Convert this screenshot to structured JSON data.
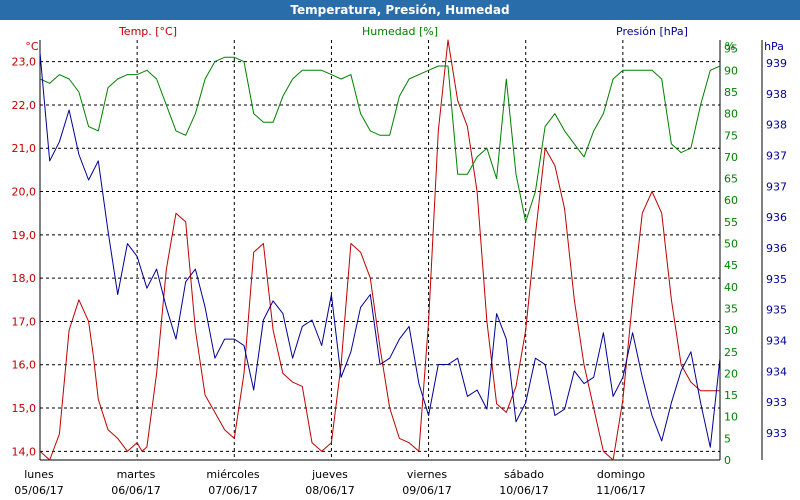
{
  "window": {
    "title": "Temperatura, Presión, Humedad"
  },
  "colors": {
    "temp": "#c00000",
    "hum": "#008000",
    "pres": "#000099",
    "grid": "#000000"
  },
  "chart_data": {
    "type": "line",
    "title": "Temperatura, Presión, Humedad",
    "grid": true,
    "x_categories": [
      {
        "day": "lunes",
        "date": "05/06/17"
      },
      {
        "day": "martes",
        "date": "06/06/17"
      },
      {
        "day": "miércoles",
        "date": "07/06/17"
      },
      {
        "day": "jueves",
        "date": "08/06/17"
      },
      {
        "day": "viernes",
        "date": "09/06/17"
      },
      {
        "day": "sábado",
        "date": "10/06/17"
      },
      {
        "day": "domingo",
        "date": "11/06/17"
      }
    ],
    "axes": {
      "temp": {
        "label": "Temp. [°C]",
        "unit": "°C",
        "ylim": [
          13.8,
          23.5
        ],
        "ticks": [
          "23,0",
          "22,0",
          "21,0",
          "20,0",
          "19,0",
          "18,0",
          "17,0",
          "16,0",
          "15,0",
          "14,0"
        ]
      },
      "hum": {
        "label": "Humedad [%]",
        "unit": "%",
        "ylim": [
          0,
          97
        ],
        "ticks": [
          "95",
          "90",
          "85",
          "80",
          "75",
          "70",
          "65",
          "60",
          "55",
          "50",
          "45",
          "40",
          "35",
          "30",
          "25",
          "20",
          "15",
          "10",
          "5",
          "0"
        ]
      },
      "pres": {
        "label": "Presión [hPa]",
        "unit": "hPa",
        "ticks": [
          "939",
          "938",
          "938",
          "937",
          "937",
          "936",
          "936",
          "935",
          "935",
          "934",
          "934",
          "933",
          "933"
        ]
      }
    },
    "series": [
      {
        "name": "Temp. [°C]",
        "axis": "temp",
        "x": [
          0,
          0.1,
          0.2,
          0.3,
          0.4,
          0.5,
          0.55,
          0.6,
          0.7,
          0.8,
          0.9,
          1.0,
          1.05,
          1.1,
          1.2,
          1.3,
          1.4,
          1.5,
          1.6,
          1.7,
          1.8,
          1.9,
          2.0,
          2.1,
          2.2,
          2.3,
          2.4,
          2.5,
          2.6,
          2.7,
          2.8,
          2.9,
          3.0,
          3.1,
          3.2,
          3.3,
          3.4,
          3.5,
          3.6,
          3.7,
          3.8,
          3.9,
          4.0,
          4.1,
          4.2,
          4.3,
          4.4,
          4.5,
          4.6,
          4.7,
          4.8,
          4.9,
          5.0,
          5.1,
          5.2,
          5.3,
          5.4,
          5.5,
          5.6,
          5.7,
          5.8,
          5.9,
          6.0,
          6.1,
          6.2,
          6.3,
          6.4,
          6.5,
          6.6,
          6.7,
          6.8,
          6.9,
          7.0
        ],
        "values": [
          14.0,
          13.8,
          14.4,
          16.8,
          17.5,
          17.0,
          16.2,
          15.2,
          14.5,
          14.3,
          14.0,
          14.2,
          14.0,
          14.1,
          15.8,
          18.2,
          19.5,
          19.3,
          16.8,
          15.3,
          14.9,
          14.5,
          14.3,
          15.8,
          18.6,
          18.8,
          16.8,
          15.8,
          15.6,
          15.5,
          14.2,
          14.0,
          14.2,
          16.0,
          18.8,
          18.6,
          18.0,
          16.4,
          15.0,
          14.3,
          14.2,
          14.0,
          17.0,
          21.4,
          23.5,
          22.1,
          21.5,
          20.0,
          17.0,
          15.1,
          14.9,
          15.5,
          16.8,
          19.0,
          21.0,
          20.6,
          19.6,
          17.5,
          16.0,
          15.0,
          14.0,
          13.8,
          15.2,
          17.5,
          19.5,
          20.0,
          19.5,
          17.5,
          16.0,
          15.6,
          15.4,
          15.4,
          15.4
        ]
      },
      {
        "name": "Humedad [%]",
        "axis": "hum",
        "x": [
          0,
          0.1,
          0.2,
          0.3,
          0.4,
          0.5,
          0.6,
          0.7,
          0.8,
          0.9,
          1.0,
          1.1,
          1.2,
          1.3,
          1.4,
          1.5,
          1.6,
          1.7,
          1.8,
          1.9,
          2.0,
          2.1,
          2.2,
          2.3,
          2.4,
          2.5,
          2.6,
          2.7,
          2.8,
          2.9,
          3.0,
          3.1,
          3.2,
          3.3,
          3.4,
          3.5,
          3.6,
          3.7,
          3.8,
          3.9,
          4.0,
          4.1,
          4.2,
          4.3,
          4.4,
          4.5,
          4.6,
          4.7,
          4.8,
          4.9,
          5.0,
          5.1,
          5.2,
          5.3,
          5.4,
          5.5,
          5.6,
          5.7,
          5.8,
          5.9,
          6.0,
          6.1,
          6.2,
          6.3,
          6.4,
          6.5,
          6.6,
          6.7,
          6.8,
          6.9,
          7.0
        ],
        "values": [
          88,
          87,
          89,
          88,
          85,
          77,
          76,
          86,
          88,
          89,
          89,
          90,
          88,
          82,
          76,
          75,
          80,
          88,
          92,
          93,
          93,
          92,
          80,
          78,
          78,
          84,
          88,
          90,
          90,
          90,
          89,
          88,
          89,
          80,
          76,
          75,
          75,
          84,
          88,
          89,
          90,
          91,
          91,
          66,
          66,
          70,
          72,
          65,
          88,
          66,
          55,
          62,
          77,
          80,
          76,
          73,
          70,
          76,
          80,
          88,
          90,
          90,
          90,
          90,
          88,
          73,
          71,
          72,
          82,
          90,
          91
        ]
      },
      {
        "name": "Presión [hPa]",
        "axis": "pres",
        "x": [
          0,
          0.1,
          0.2,
          0.3,
          0.4,
          0.5,
          0.6,
          0.7,
          0.8,
          0.9,
          1.0,
          1.1,
          1.2,
          1.3,
          1.4,
          1.5,
          1.6,
          1.7,
          1.8,
          1.9,
          2.0,
          2.1,
          2.2,
          2.3,
          2.4,
          2.5,
          2.6,
          2.7,
          2.8,
          2.9,
          3.0,
          3.1,
          3.2,
          3.3,
          3.4,
          3.5,
          3.6,
          3.7,
          3.8,
          3.9,
          4.0,
          4.1,
          4.2,
          4.3,
          4.4,
          4.5,
          4.6,
          4.7,
          4.8,
          4.9,
          5.0,
          5.1,
          5.2,
          5.3,
          5.4,
          5.5,
          5.6,
          5.7,
          5.8,
          5.9,
          6.0,
          6.1,
          6.2,
          6.3,
          6.4,
          6.5,
          6.6,
          6.7,
          6.8,
          6.9,
          7.0
        ],
        "values": [
          939.0,
          937.3,
          937.6,
          938.1,
          937.4,
          937.0,
          937.3,
          936.2,
          935.2,
          936.0,
          935.8,
          935.3,
          935.6,
          935.0,
          934.5,
          935.4,
          935.6,
          935.0,
          934.2,
          934.5,
          934.5,
          934.4,
          933.7,
          934.8,
          935.1,
          934.9,
          934.2,
          934.7,
          934.8,
          934.4,
          935.2,
          933.9,
          934.3,
          935.0,
          935.2,
          934.1,
          934.2,
          934.5,
          934.7,
          933.8,
          933.3,
          934.1,
          934.1,
          934.2,
          933.6,
          933.7,
          933.4,
          934.9,
          934.5,
          933.2,
          933.5,
          934.2,
          934.1,
          933.3,
          933.4,
          934.0,
          933.8,
          933.9,
          934.6,
          933.6,
          933.9,
          934.6,
          933.9,
          933.3,
          932.9,
          933.5,
          934.0,
          934.3,
          933.5,
          932.8,
          934.2
        ]
      }
    ]
  }
}
